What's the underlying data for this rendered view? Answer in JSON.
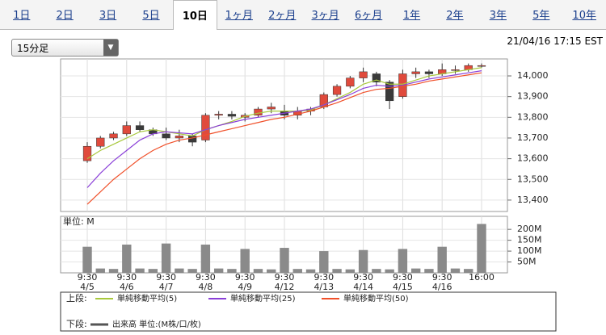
{
  "tabs": [
    "1日",
    "2日",
    "3日",
    "5日",
    "10日",
    "1ヶ月",
    "2ヶ月",
    "3ヶ月",
    "6ヶ月",
    "1年",
    "2年",
    "3年",
    "5年",
    "10年"
  ],
  "selected_tab": "10日",
  "dropdown": "15分足",
  "timestamp": "21/04/16 17:15 EST",
  "chart_data": [
    {
      "type": "candlestick",
      "up_color": "#e04a3c",
      "down_color": "#3a3a3a",
      "open": [
        13590,
        13660,
        13700,
        13720,
        13760,
        13740,
        13720,
        13700,
        13710,
        13690,
        13810,
        13815,
        13800,
        13810,
        13840,
        13830,
        13810,
        13830,
        13850,
        13910,
        13950,
        13990,
        14010,
        13970,
        13900,
        14010,
        14020,
        14010,
        14030,
        14030,
        14050
      ],
      "high": [
        13680,
        13710,
        13730,
        13780,
        13780,
        13750,
        13750,
        13740,
        13720,
        13820,
        13830,
        13830,
        13820,
        13850,
        13870,
        13860,
        13850,
        13850,
        13920,
        13960,
        14000,
        14040,
        14020,
        13980,
        14030,
        14040,
        14030,
        14060,
        14050,
        14060,
        14060
      ],
      "low": [
        13580,
        13650,
        13690,
        13710,
        13730,
        13710,
        13690,
        13680,
        13660,
        13680,
        13790,
        13790,
        13780,
        13800,
        13820,
        13790,
        13790,
        13810,
        13840,
        13900,
        13940,
        13970,
        13950,
        13840,
        13890,
        13990,
        13990,
        14000,
        14010,
        14020,
        14040
      ],
      "close": [
        13660,
        13700,
        13720,
        13760,
        13740,
        13720,
        13700,
        13710,
        13680,
        13810,
        13815,
        13805,
        13810,
        13840,
        13850,
        13810,
        13830,
        13840,
        13910,
        13950,
        13990,
        14020,
        13970,
        13880,
        14010,
        14020,
        14010,
        14030,
        14030,
        14050,
        14050
      ],
      "series": [
        {
          "name": "単純移動平均(5)",
          "color": "#a8c83c",
          "values": [
            13600,
            13640,
            13670,
            13700,
            13730,
            13740,
            13730,
            13720,
            13710,
            13740,
            13760,
            13780,
            13805,
            13820,
            13830,
            13830,
            13830,
            13835,
            13860,
            13890,
            13920,
            13960,
            13980,
            13960,
            13960,
            13980,
            14000,
            14010,
            14020,
            14030,
            14040
          ]
        },
        {
          "name": "単純移動平均(25)",
          "color": "#8a3fd8",
          "values": [
            13460,
            13530,
            13590,
            13640,
            13690,
            13720,
            13730,
            13725,
            13720,
            13740,
            13760,
            13775,
            13790,
            13800,
            13810,
            13820,
            13830,
            13840,
            13860,
            13885,
            13910,
            13940,
            13955,
            13950,
            13955,
            13970,
            13985,
            13995,
            14005,
            14015,
            14025
          ]
        },
        {
          "name": "単純移動平均(50)",
          "color": "#f0502a",
          "values": [
            13380,
            13440,
            13500,
            13550,
            13600,
            13640,
            13670,
            13690,
            13700,
            13715,
            13730,
            13745,
            13760,
            13775,
            13790,
            13800,
            13815,
            13830,
            13850,
            13870,
            13895,
            13920,
            13935,
            13940,
            13950,
            13960,
            13975,
            13985,
            13995,
            14005,
            14015
          ]
        }
      ],
      "ylim": [
        13345,
        14082
      ],
      "yticks": [
        {
          "value": 13400,
          "label": "13,400"
        },
        {
          "value": 13500,
          "label": "13,500"
        },
        {
          "value": 13600,
          "label": "13,600"
        },
        {
          "value": 13700,
          "label": "13,700"
        },
        {
          "value": 13800,
          "label": "13,800"
        },
        {
          "value": 13900,
          "label": "13,900"
        },
        {
          "value": 14000,
          "label": "14,000"
        }
      ],
      "grid": true,
      "legend_label": "上段:"
    },
    {
      "type": "bar",
      "y_label": "単位: M",
      "name": "出来高 単位:(M株/口/枚)",
      "color": "#8a8a8a",
      "legend_color": "#555555",
      "values": [
        120,
        20,
        18,
        130,
        20,
        18,
        135,
        20,
        18,
        130,
        20,
        18,
        110,
        18,
        16,
        115,
        18,
        16,
        100,
        18,
        16,
        105,
        18,
        16,
        110,
        20,
        18,
        120,
        20,
        18,
        225
      ],
      "ylim": [
        0,
        260
      ],
      "yticks": [
        {
          "value": 50,
          "label": "50M"
        },
        {
          "value": 100,
          "label": "100M"
        },
        {
          "value": 150,
          "label": "150M"
        },
        {
          "value": 200,
          "label": "200M"
        }
      ],
      "xticks": [
        {
          "value": 0,
          "label": "9:30"
        },
        {
          "value": 3,
          "label": "9:30"
        },
        {
          "value": 6,
          "label": "9:30"
        },
        {
          "value": 9,
          "label": "9:30"
        },
        {
          "value": 12,
          "label": "9:30"
        },
        {
          "value": 15,
          "label": "9:30"
        },
        {
          "value": 18,
          "label": "9:30"
        },
        {
          "value": 21,
          "label": "9:30"
        },
        {
          "value": 24,
          "label": "9:30"
        },
        {
          "value": 27,
          "label": "9:30"
        },
        {
          "value": 30,
          "label": "16:00"
        }
      ],
      "xtick_dates": [
        "4/5",
        "4/6",
        "4/7",
        "4/8",
        "4/9",
        "4/12",
        "4/13",
        "4/14",
        "4/15",
        "4/16",
        null
      ],
      "legend_label": "下段:"
    }
  ]
}
